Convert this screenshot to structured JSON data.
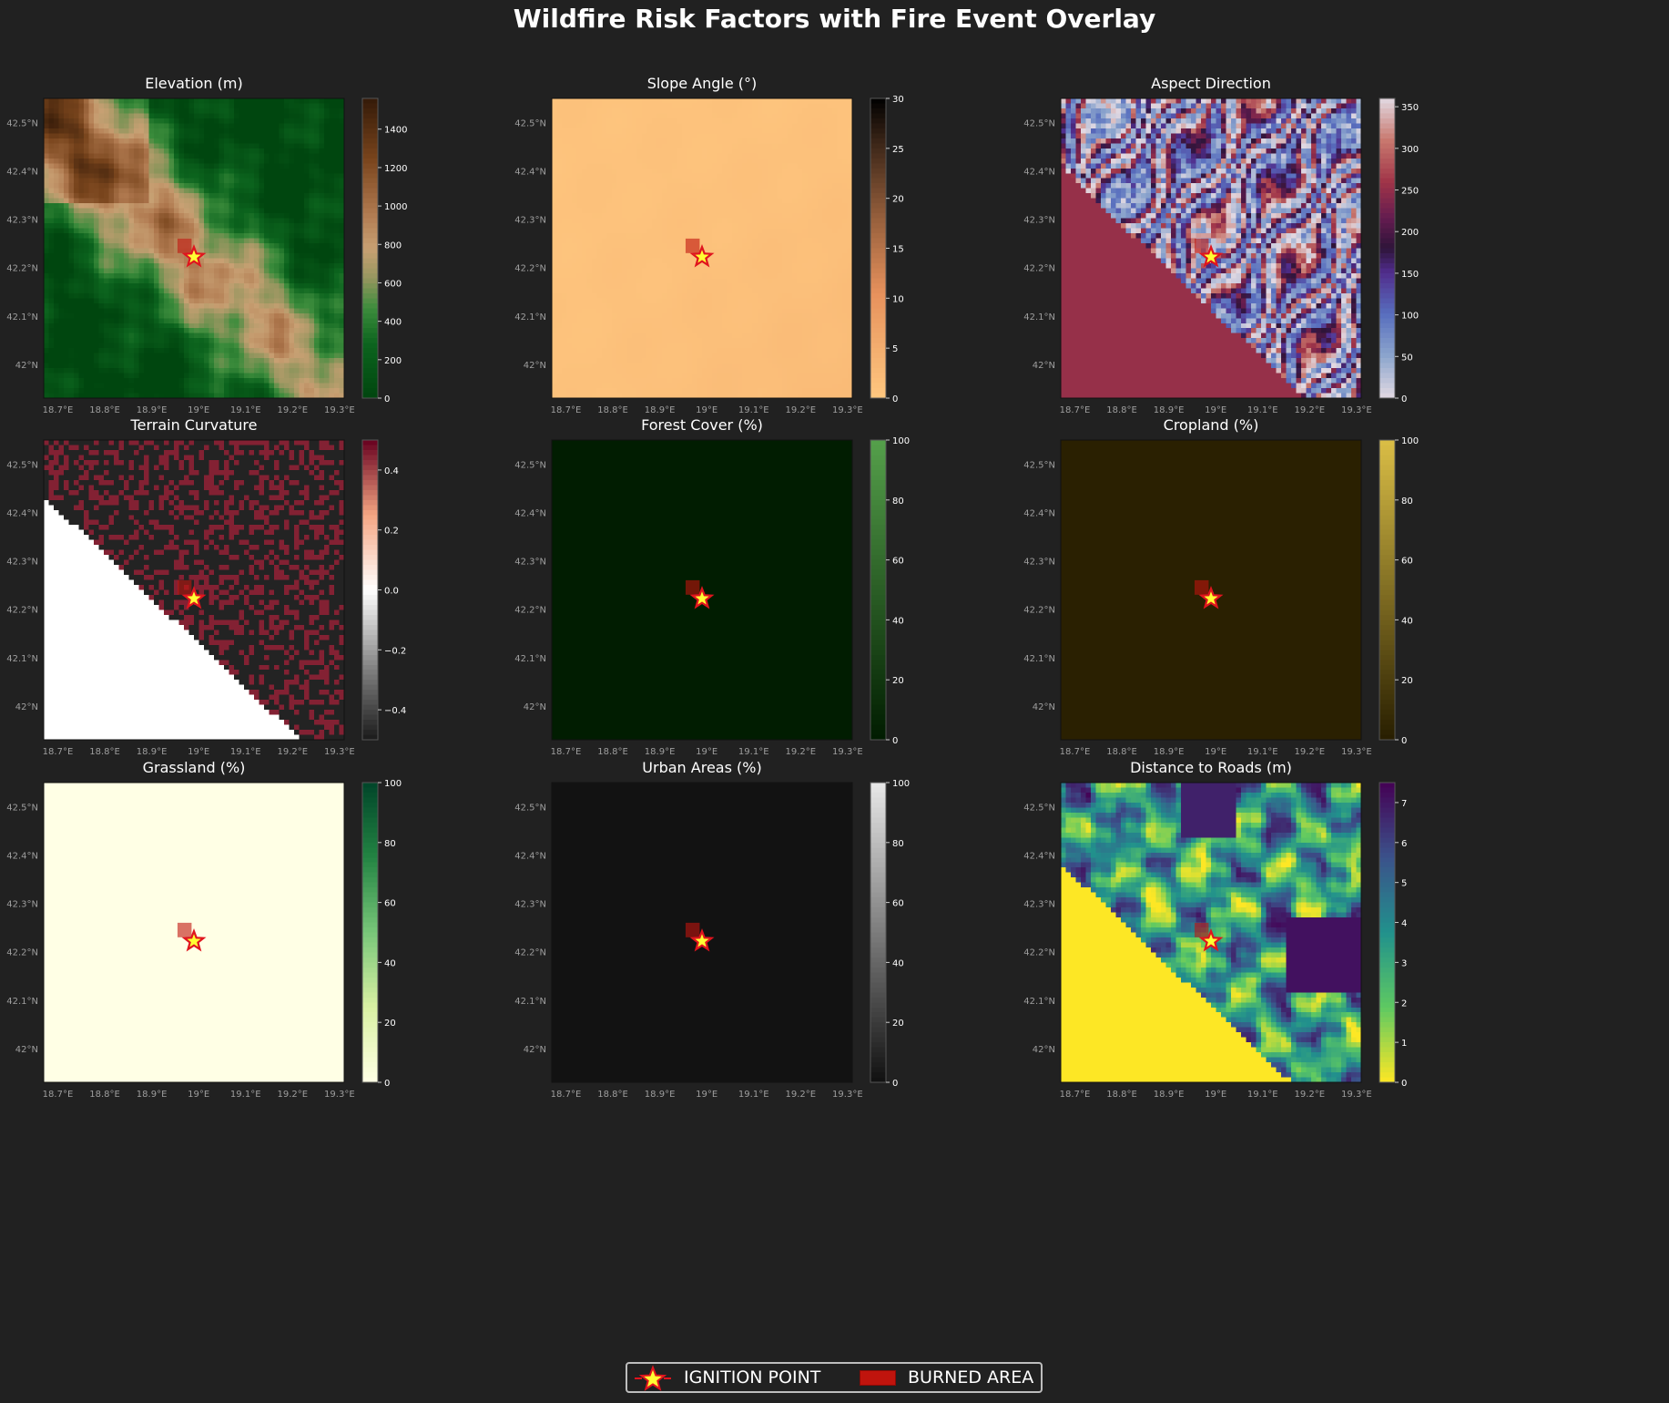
{
  "title": "Wildfire Risk Factors with Fire Event Overlay",
  "colors": {
    "background": "#212121",
    "burned_area": "#c0140d",
    "ignition_fill": "#ffff33",
    "ignition_edge": "#e0141e"
  },
  "chart_data": [
    {
      "type": "heatmap",
      "title": "Elevation (m)",
      "colormap": "gist_earth_dark",
      "range": [
        0,
        1560
      ],
      "ticks": [
        "0",
        "200",
        "400",
        "600",
        "800",
        "1000",
        "1200",
        "1400"
      ],
      "tick_values": [
        0,
        200,
        400,
        600,
        800,
        1000,
        1200,
        1400
      ],
      "field": "ridge"
    },
    {
      "type": "heatmap",
      "title": "Slope Angle (°)",
      "colormap": "copper_r",
      "range": [
        0,
        30
      ],
      "ticks": [
        "0",
        "5",
        "10",
        "15",
        "20",
        "25",
        "30"
      ],
      "tick_values": [
        0,
        5,
        10,
        15,
        20,
        25,
        30
      ],
      "field": "slope"
    },
    {
      "type": "heatmap",
      "title": "Aspect Direction",
      "colormap": "twilight",
      "range": [
        0,
        360
      ],
      "ticks": [
        "0",
        "50",
        "100",
        "150",
        "200",
        "250",
        "300",
        "350"
      ],
      "tick_values": [
        0,
        50,
        100,
        150,
        200,
        250,
        300,
        350
      ],
      "field": "aspect"
    },
    {
      "type": "heatmap",
      "title": "Terrain Curvature",
      "colormap": "RdGy_r",
      "range": [
        -0.5,
        0.5
      ],
      "ticks": [
        "−0.4",
        "−0.2",
        "0.0",
        "0.2",
        "0.4"
      ],
      "tick_values": [
        -0.4,
        -0.2,
        0.0,
        0.2,
        0.4
      ],
      "field": "curvature"
    },
    {
      "type": "heatmap",
      "title": "Forest Cover (%)",
      "colormap": "Greens_dark",
      "range": [
        0,
        100
      ],
      "ticks": [
        "0",
        "20",
        "40",
        "60",
        "80",
        "100"
      ],
      "tick_values": [
        0,
        20,
        40,
        60,
        80,
        100
      ],
      "field": "flat",
      "flat_value": 1
    },
    {
      "type": "heatmap",
      "title": "Cropland (%)",
      "colormap": "olive_dark",
      "range": [
        0,
        100
      ],
      "ticks": [
        "0",
        "20",
        "40",
        "60",
        "80",
        "100"
      ],
      "tick_values": [
        0,
        20,
        40,
        60,
        80,
        100
      ],
      "field": "flat",
      "flat_value": 1
    },
    {
      "type": "heatmap",
      "title": "Grassland (%)",
      "colormap": "YlGn",
      "range": [
        0,
        100
      ],
      "ticks": [
        "0",
        "20",
        "40",
        "60",
        "80",
        "100"
      ],
      "tick_values": [
        0,
        20,
        40,
        60,
        80,
        100
      ],
      "field": "flat",
      "flat_value": 0
    },
    {
      "type": "heatmap",
      "title": "Urban Areas (%)",
      "colormap": "gray",
      "range": [
        0,
        100
      ],
      "ticks": [
        "0",
        "20",
        "40",
        "60",
        "80",
        "100"
      ],
      "tick_values": [
        0,
        20,
        40,
        60,
        80,
        100
      ],
      "field": "flat",
      "flat_value": 1
    },
    {
      "type": "heatmap",
      "title": "Distance to Roads (m)",
      "colormap": "viridis_r",
      "range": [
        0,
        7.5
      ],
      "ticks": [
        "0",
        "1",
        "2",
        "3",
        "4",
        "5",
        "6",
        "7"
      ],
      "tick_values": [
        0,
        1,
        2,
        3,
        4,
        5,
        6,
        7
      ],
      "field": "roads"
    }
  ],
  "axes": {
    "x_range": [
      18.67,
      19.31
    ],
    "y_range": [
      41.93,
      42.55
    ],
    "x_ticks": [
      "18.7°E",
      "18.8°E",
      "18.9°E",
      "19°E",
      "19.1°E",
      "19.2°E",
      "19.3°E"
    ],
    "x_tick_values": [
      18.7,
      18.8,
      18.9,
      19.0,
      19.1,
      19.2,
      19.3
    ],
    "y_ticks": [
      "42°N",
      "42.1°N",
      "42.2°N",
      "42.3°N",
      "42.4°N",
      "42.5°N"
    ],
    "y_tick_values": [
      42.0,
      42.1,
      42.2,
      42.3,
      42.4,
      42.5
    ]
  },
  "ignition_point": {
    "lon": 18.99,
    "lat": 42.222
  },
  "burned_area": {
    "lon": [
      18.955,
      18.985
    ],
    "lat": [
      42.23,
      42.26
    ]
  },
  "legend": {
    "items": [
      {
        "label": "IGNITION POINT"
      },
      {
        "label": "BURNED AREA"
      }
    ]
  }
}
